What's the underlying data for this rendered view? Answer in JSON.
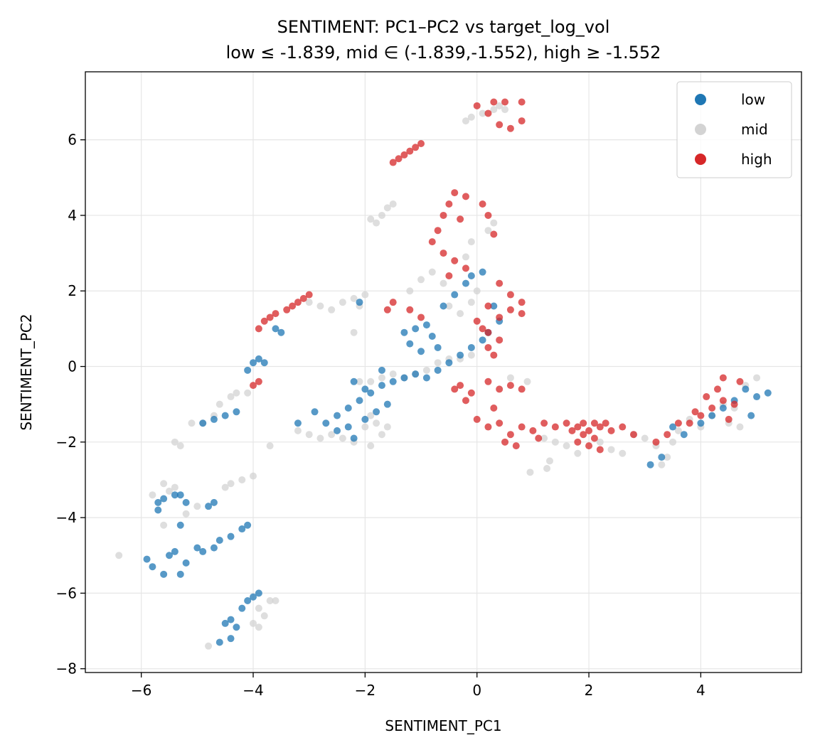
{
  "chart_data": {
    "type": "scatter",
    "title": "SENTIMENT: PC1–PC2 vs target_log_vol",
    "subtitle": "low ≤ -1.839, mid ∈ (-1.839,-1.552), high ≥ -1.552",
    "xlabel": "SENTIMENT_PC1",
    "ylabel": "SENTIMENT_PC2",
    "xlim": [
      -7.0,
      5.8
    ],
    "ylim": [
      -8.1,
      7.8
    ],
    "xticks": [
      -6,
      -4,
      -2,
      0,
      2,
      4
    ],
    "xtick_labels": [
      "−6",
      "−4",
      "−2",
      "0",
      "2",
      "4"
    ],
    "yticks": [
      -8,
      -6,
      -4,
      -2,
      0,
      2,
      4,
      6
    ],
    "ytick_labels": [
      "−8",
      "−6",
      "−4",
      "−2",
      "0",
      "2",
      "4",
      "6"
    ],
    "grid": true,
    "legend_position": "top-right",
    "series": [
      {
        "name": "mid",
        "color": "#d3d3d3",
        "points": [
          [
            -6.4,
            -5.0
          ],
          [
            -5.8,
            -3.4
          ],
          [
            -5.6,
            -3.1
          ],
          [
            -5.5,
            -3.3
          ],
          [
            -5.4,
            -3.2
          ],
          [
            -5.2,
            -3.9
          ],
          [
            -5.0,
            -3.7
          ],
          [
            -5.4,
            -2.0
          ],
          [
            -5.3,
            -2.1
          ],
          [
            -5.6,
            -4.2
          ],
          [
            -5.1,
            -1.5
          ],
          [
            -4.9,
            -1.5
          ],
          [
            -4.7,
            -1.3
          ],
          [
            -4.6,
            -1.0
          ],
          [
            -4.4,
            -0.8
          ],
          [
            -4.3,
            -0.7
          ],
          [
            -4.1,
            -0.7
          ],
          [
            -4.2,
            -3.0
          ],
          [
            -4.0,
            -2.9
          ],
          [
            -4.4,
            -3.1
          ],
          [
            -4.5,
            -3.2
          ],
          [
            -3.9,
            -6.4
          ],
          [
            -3.7,
            -6.2
          ],
          [
            -3.6,
            -6.2
          ],
          [
            -3.9,
            -6.9
          ],
          [
            -3.8,
            -6.6
          ],
          [
            -4.0,
            -6.8
          ],
          [
            -4.8,
            -7.4
          ],
          [
            -3.0,
            1.7
          ],
          [
            -2.8,
            1.6
          ],
          [
            -2.6,
            1.5
          ],
          [
            -2.4,
            1.7
          ],
          [
            -2.2,
            1.8
          ],
          [
            -2.0,
            1.9
          ],
          [
            -2.1,
            1.6
          ],
          [
            -2.2,
            0.9
          ],
          [
            -3.7,
            -2.1
          ],
          [
            -3.2,
            -1.7
          ],
          [
            -3.0,
            -1.8
          ],
          [
            -2.8,
            -1.9
          ],
          [
            -2.6,
            -1.8
          ],
          [
            -2.4,
            -1.9
          ],
          [
            -2.2,
            -2.0
          ],
          [
            -2.0,
            -1.6
          ],
          [
            -1.9,
            -1.3
          ],
          [
            -1.8,
            -1.5
          ],
          [
            -1.7,
            -1.8
          ],
          [
            -1.6,
            -1.6
          ],
          [
            -1.9,
            -2.1
          ],
          [
            -2.1,
            -0.4
          ],
          [
            -1.9,
            -0.4
          ],
          [
            -1.7,
            -0.3
          ],
          [
            -1.5,
            -0.2
          ],
          [
            -1.3,
            -0.3
          ],
          [
            -1.1,
            -0.2
          ],
          [
            -0.9,
            -0.1
          ],
          [
            -0.7,
            0.1
          ],
          [
            -0.5,
            0.2
          ],
          [
            -0.3,
            0.2
          ],
          [
            -0.1,
            0.3
          ],
          [
            -1.9,
            3.9
          ],
          [
            -1.7,
            4.0
          ],
          [
            -1.6,
            4.2
          ],
          [
            -1.5,
            4.3
          ],
          [
            -1.8,
            3.8
          ],
          [
            -1.2,
            2.0
          ],
          [
            -1.0,
            2.3
          ],
          [
            -0.8,
            2.5
          ],
          [
            -0.6,
            2.2
          ],
          [
            -0.5,
            1.6
          ],
          [
            -0.3,
            1.4
          ],
          [
            -0.1,
            1.7
          ],
          [
            0.0,
            2.0
          ],
          [
            -0.2,
            2.9
          ],
          [
            -0.1,
            3.3
          ],
          [
            0.2,
            3.6
          ],
          [
            0.3,
            3.8
          ],
          [
            0.1,
            6.7
          ],
          [
            0.3,
            6.8
          ],
          [
            0.4,
            6.9
          ],
          [
            0.5,
            6.8
          ],
          [
            -0.2,
            6.5
          ],
          [
            -0.1,
            6.6
          ],
          [
            0.6,
            -0.3
          ],
          [
            0.9,
            -0.4
          ],
          [
            1.2,
            -1.9
          ],
          [
            1.4,
            -2.0
          ],
          [
            1.6,
            -2.1
          ],
          [
            1.8,
            -2.3
          ],
          [
            1.3,
            -2.5
          ],
          [
            0.95,
            -2.8
          ],
          [
            1.25,
            -2.7
          ],
          [
            2.2,
            -2.0
          ],
          [
            2.4,
            -2.2
          ],
          [
            2.6,
            -2.3
          ],
          [
            2.8,
            -1.8
          ],
          [
            3.0,
            -1.9
          ],
          [
            3.2,
            -2.1
          ],
          [
            3.4,
            -2.4
          ],
          [
            3.3,
            -2.6
          ],
          [
            3.5,
            -2.0
          ],
          [
            3.6,
            -1.7
          ],
          [
            3.8,
            -1.4
          ],
          [
            4.0,
            -1.6
          ],
          [
            4.2,
            -1.3
          ],
          [
            4.4,
            -1.0
          ],
          [
            4.6,
            -1.1
          ],
          [
            4.8,
            -0.5
          ],
          [
            5.0,
            -0.3
          ],
          [
            4.7,
            -1.6
          ],
          [
            4.5,
            -1.5
          ]
        ]
      },
      {
        "name": "low",
        "color": "#1f77b4",
        "points": [
          [
            -5.9,
            -5.1
          ],
          [
            -5.8,
            -5.3
          ],
          [
            -5.6,
            -5.5
          ],
          [
            -5.5,
            -5.0
          ],
          [
            -5.4,
            -4.9
          ],
          [
            -5.3,
            -5.5
          ],
          [
            -5.2,
            -5.2
          ],
          [
            -5.0,
            -4.8
          ],
          [
            -4.9,
            -4.9
          ],
          [
            -4.7,
            -4.8
          ],
          [
            -4.6,
            -4.6
          ],
          [
            -4.4,
            -4.5
          ],
          [
            -4.2,
            -4.3
          ],
          [
            -4.1,
            -4.2
          ],
          [
            -5.7,
            -3.6
          ],
          [
            -5.6,
            -3.5
          ],
          [
            -5.4,
            -3.4
          ],
          [
            -5.3,
            -3.4
          ],
          [
            -5.2,
            -3.6
          ],
          [
            -5.7,
            -3.8
          ],
          [
            -5.3,
            -4.2
          ],
          [
            -4.8,
            -3.7
          ],
          [
            -4.7,
            -3.6
          ],
          [
            -4.9,
            -1.5
          ],
          [
            -4.7,
            -1.4
          ],
          [
            -4.5,
            -1.3
          ],
          [
            -4.3,
            -1.2
          ],
          [
            -4.1,
            -0.1
          ],
          [
            -4.0,
            0.1
          ],
          [
            -3.9,
            0.2
          ],
          [
            -3.8,
            0.1
          ],
          [
            -3.6,
            1.0
          ],
          [
            -3.5,
            0.9
          ],
          [
            -4.5,
            -6.8
          ],
          [
            -4.4,
            -6.7
          ],
          [
            -4.3,
            -6.9
          ],
          [
            -4.2,
            -6.4
          ],
          [
            -4.1,
            -6.2
          ],
          [
            -4.0,
            -6.1
          ],
          [
            -3.9,
            -6.0
          ],
          [
            -4.6,
            -7.3
          ],
          [
            -4.4,
            -7.2
          ],
          [
            -2.7,
            -1.5
          ],
          [
            -2.5,
            -1.3
          ],
          [
            -2.3,
            -1.1
          ],
          [
            -2.1,
            -0.9
          ],
          [
            -1.9,
            -0.7
          ],
          [
            -1.7,
            -0.5
          ],
          [
            -1.5,
            -0.4
          ],
          [
            -2.5,
            -1.7
          ],
          [
            -2.3,
            -1.6
          ],
          [
            -2.0,
            -1.4
          ],
          [
            -1.8,
            -1.2
          ],
          [
            -1.6,
            -1.0
          ],
          [
            -2.2,
            -0.4
          ],
          [
            -2.0,
            -0.6
          ],
          [
            -1.7,
            -0.1
          ],
          [
            -1.3,
            -0.3
          ],
          [
            -1.1,
            -0.2
          ],
          [
            -0.9,
            -0.3
          ],
          [
            -0.7,
            -0.1
          ],
          [
            -0.5,
            0.1
          ],
          [
            -0.3,
            0.3
          ],
          [
            -0.1,
            0.5
          ],
          [
            0.1,
            0.7
          ],
          [
            -1.3,
            0.9
          ],
          [
            -1.1,
            1.0
          ],
          [
            -0.9,
            1.1
          ],
          [
            -0.8,
            0.8
          ],
          [
            -1.2,
            0.6
          ],
          [
            -1.0,
            0.4
          ],
          [
            -0.7,
            0.5
          ],
          [
            -0.6,
            1.6
          ],
          [
            -0.4,
            1.9
          ],
          [
            -0.2,
            2.2
          ],
          [
            -0.1,
            2.4
          ],
          [
            0.1,
            2.5
          ],
          [
            0.3,
            1.6
          ],
          [
            0.4,
            1.2
          ],
          [
            0.2,
            0.9
          ],
          [
            -2.1,
            1.7
          ],
          [
            -2.2,
            -1.9
          ],
          [
            -3.2,
            -1.5
          ],
          [
            -2.9,
            -1.2
          ],
          [
            4.0,
            -1.5
          ],
          [
            4.2,
            -1.3
          ],
          [
            4.4,
            -1.1
          ],
          [
            4.6,
            -0.9
          ],
          [
            4.8,
            -0.6
          ],
          [
            5.0,
            -0.8
          ],
          [
            5.2,
            -0.7
          ],
          [
            4.9,
            -1.3
          ],
          [
            3.1,
            -2.6
          ],
          [
            3.3,
            -2.4
          ],
          [
            3.5,
            -1.6
          ],
          [
            3.7,
            -1.8
          ]
        ]
      },
      {
        "name": "high",
        "color": "#d62728",
        "points": [
          [
            -3.8,
            1.2
          ],
          [
            -3.6,
            1.4
          ],
          [
            -3.4,
            1.5
          ],
          [
            -3.2,
            1.7
          ],
          [
            -3.0,
            1.9
          ],
          [
            -3.3,
            1.6
          ],
          [
            -3.1,
            1.8
          ],
          [
            -3.9,
            1.0
          ],
          [
            -3.7,
            1.3
          ],
          [
            -4.0,
            -0.5
          ],
          [
            -3.9,
            -0.4
          ],
          [
            -1.5,
            5.4
          ],
          [
            -1.3,
            5.6
          ],
          [
            -1.2,
            5.7
          ],
          [
            -1.1,
            5.8
          ],
          [
            -1.0,
            5.9
          ],
          [
            -1.4,
            5.5
          ],
          [
            -0.7,
            3.6
          ],
          [
            -0.6,
            4.0
          ],
          [
            -0.5,
            4.3
          ],
          [
            -0.4,
            4.6
          ],
          [
            -0.2,
            4.5
          ],
          [
            0.1,
            4.3
          ],
          [
            0.2,
            4.0
          ],
          [
            -0.3,
            3.9
          ],
          [
            0.3,
            3.5
          ],
          [
            -0.8,
            3.3
          ],
          [
            -0.6,
            3.0
          ],
          [
            -0.4,
            2.8
          ],
          [
            -0.2,
            2.6
          ],
          [
            -0.5,
            2.4
          ],
          [
            0.4,
            2.2
          ],
          [
            0.6,
            1.9
          ],
          [
            0.8,
            1.7
          ],
          [
            0.2,
            1.6
          ],
          [
            0.4,
            1.3
          ],
          [
            0.6,
            1.5
          ],
          [
            0.8,
            1.4
          ],
          [
            0.1,
            1.0
          ],
          [
            0.0,
            1.2
          ],
          [
            0.2,
            0.9
          ],
          [
            0.4,
            0.7
          ],
          [
            0.2,
            0.5
          ],
          [
            0.3,
            0.3
          ],
          [
            -1.0,
            1.3
          ],
          [
            -1.2,
            1.5
          ],
          [
            -1.5,
            1.7
          ],
          [
            -1.6,
            1.5
          ],
          [
            0.0,
            6.9
          ],
          [
            0.3,
            7.0
          ],
          [
            0.5,
            7.0
          ],
          [
            0.8,
            7.0
          ],
          [
            0.4,
            6.4
          ],
          [
            0.6,
            6.3
          ],
          [
            0.8,
            6.5
          ],
          [
            0.2,
            6.7
          ],
          [
            -0.3,
            -0.5
          ],
          [
            -0.1,
            -0.7
          ],
          [
            0.2,
            -0.4
          ],
          [
            0.4,
            -0.6
          ],
          [
            0.6,
            -0.5
          ],
          [
            0.8,
            -0.6
          ],
          [
            0.3,
            -1.1
          ],
          [
            -0.2,
            -0.9
          ],
          [
            -0.4,
            -0.6
          ],
          [
            0.0,
            -1.4
          ],
          [
            0.2,
            -1.6
          ],
          [
            0.4,
            -1.5
          ],
          [
            0.6,
            -1.8
          ],
          [
            0.8,
            -1.6
          ],
          [
            1.0,
            -1.7
          ],
          [
            1.2,
            -1.5
          ],
          [
            1.4,
            -1.6
          ],
          [
            1.6,
            -1.5
          ],
          [
            0.5,
            -2.0
          ],
          [
            0.7,
            -2.1
          ],
          [
            1.1,
            -1.9
          ],
          [
            1.7,
            -1.7
          ],
          [
            1.8,
            -1.6
          ],
          [
            1.9,
            -1.8
          ],
          [
            2.0,
            -1.7
          ],
          [
            2.1,
            -1.5
          ],
          [
            2.2,
            -1.6
          ],
          [
            2.3,
            -1.5
          ],
          [
            2.4,
            -1.7
          ],
          [
            1.8,
            -2.0
          ],
          [
            2.0,
            -2.1
          ],
          [
            2.2,
            -2.2
          ],
          [
            1.9,
            -1.5
          ],
          [
            2.1,
            -1.9
          ],
          [
            2.6,
            -1.6
          ],
          [
            2.8,
            -1.8
          ],
          [
            3.8,
            -1.5
          ],
          [
            4.0,
            -1.3
          ],
          [
            4.2,
            -1.1
          ],
          [
            4.4,
            -0.9
          ],
          [
            4.6,
            -1.0
          ],
          [
            4.3,
            -0.6
          ],
          [
            4.1,
            -0.8
          ],
          [
            3.9,
            -1.2
          ],
          [
            4.5,
            -1.4
          ],
          [
            4.7,
            -0.4
          ],
          [
            4.4,
            -0.3
          ],
          [
            3.6,
            -1.5
          ],
          [
            3.4,
            -1.8
          ],
          [
            3.2,
            -2.0
          ]
        ]
      }
    ]
  }
}
